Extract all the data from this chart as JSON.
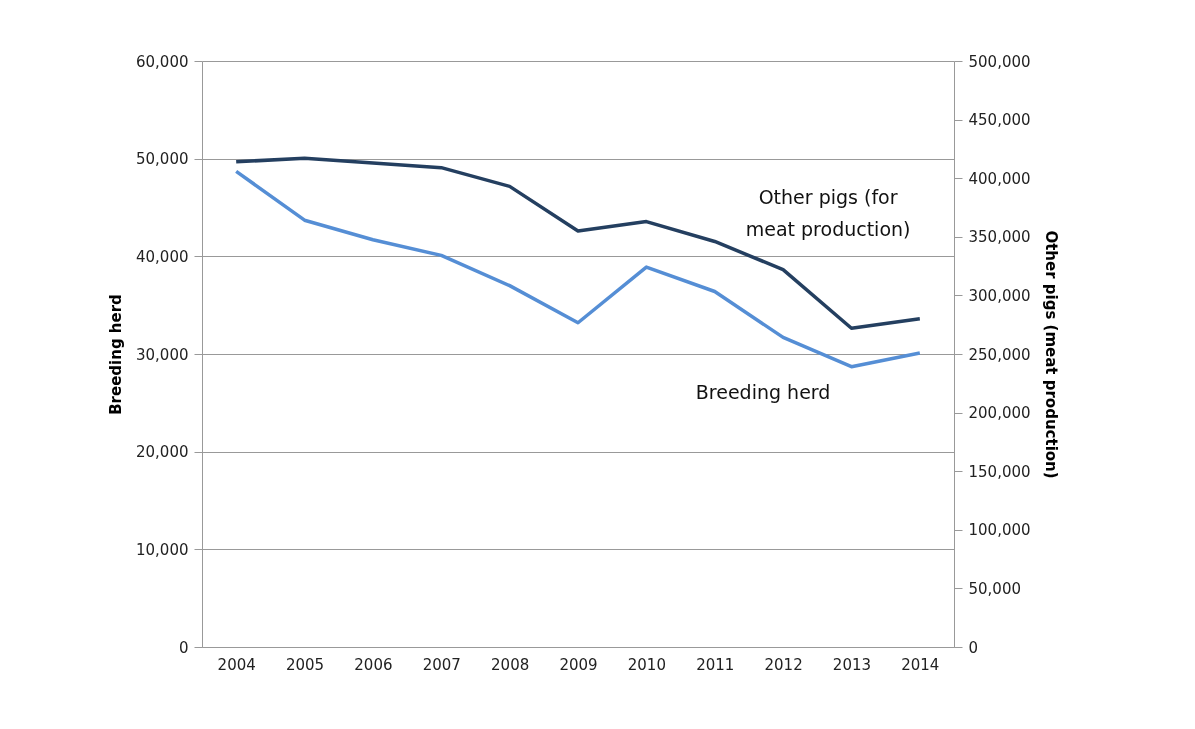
{
  "chart_data": {
    "type": "line",
    "categories": [
      "2004",
      "2005",
      "2006",
      "2007",
      "2008",
      "2009",
      "2010",
      "2011",
      "2012",
      "2013",
      "2014"
    ],
    "ylabel": "Breeding herd",
    "y2label": "Other pigs (meat production)",
    "ylim": [
      0,
      60000
    ],
    "yticks": [
      0,
      {
        "value": 10000,
        "label": "10,000"
      },
      {
        "value": 20000,
        "label": "20,000"
      },
      {
        "value": 30000,
        "label": "30,000"
      },
      {
        "value": 40000,
        "label": "40,000"
      },
      {
        "value": 50000,
        "label": "50,000"
      },
      {
        "value": 60000,
        "label": "60,000"
      }
    ],
    "y2lim": [
      0,
      500000
    ],
    "y2ticks": [
      0,
      {
        "value": 50000,
        "label": "50,000"
      },
      {
        "value": 100000,
        "label": "100,000"
      },
      {
        "value": 150000,
        "label": "150,000"
      },
      {
        "value": 200000,
        "label": "200,000"
      },
      {
        "value": 250000,
        "label": "250,000"
      },
      {
        "value": 300000,
        "label": "300,000"
      },
      {
        "value": 350000,
        "label": "350,000"
      },
      {
        "value": 400000,
        "label": "400,000"
      },
      {
        "value": 450000,
        "label": "450,000"
      },
      {
        "value": 500000,
        "label": "500,000"
      }
    ],
    "grid": "y",
    "legend": false,
    "marker": "none",
    "line_style": "solid",
    "series": [
      {
        "name": "Breeding herd",
        "color": "#558ed5",
        "values": [
          48700,
          43700,
          41700,
          40100,
          37000,
          33200,
          38900,
          36400,
          31700,
          28700,
          30100
        ]
      },
      {
        "name": "Other pigs (for meat production)",
        "color": "#243f60",
        "axis": "y2",
        "values": [
          414000,
          417000,
          413000,
          409000,
          393000,
          355000,
          363000,
          346000,
          322000,
          272000,
          280000
        ]
      }
    ]
  }
}
